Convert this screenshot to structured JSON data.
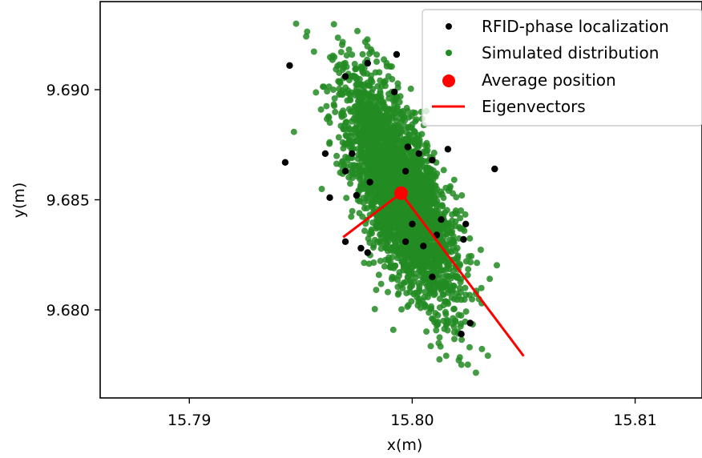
{
  "chart_data": {
    "type": "scatter",
    "title": "",
    "xlabel": "x(m)",
    "ylabel": "y(m)",
    "xlim": [
      15.786,
      15.813
    ],
    "ylim": [
      9.676,
      9.694
    ],
    "xticks": [
      "15.79",
      "15.80",
      "15.81"
    ],
    "yticks": [
      "9.680",
      "9.685",
      "9.690"
    ],
    "xtick_values": [
      15.79,
      15.8,
      15.81
    ],
    "ytick_values": [
      9.68,
      9.685,
      9.69
    ],
    "grid": false,
    "legend_position": "top-right",
    "legend": [
      {
        "label": "RFID-phase localization",
        "marker": "dot",
        "color": "#000000"
      },
      {
        "label": "Simulated distribution",
        "marker": "dot",
        "color": "#228b22"
      },
      {
        "label": "Average position",
        "marker": "large-dot",
        "color": "#ff0000"
      },
      {
        "label": "Eigenvectors",
        "marker": "line",
        "color": "#ff0000"
      }
    ],
    "colors": {
      "rfid": "#000000",
      "simulated": "#228b22",
      "average": "#ff0000",
      "eigen": "#ff0000"
    },
    "simulated_distribution": {
      "center": [
        15.7995,
        9.6853
      ],
      "major_axis_direction": [
        0.342,
        -0.94
      ],
      "major_std": 0.00275,
      "minor_std": 0.00085,
      "count": 3000,
      "x_range": [
        15.7915,
        15.8065
      ],
      "y_range": [
        9.677,
        9.6932
      ]
    },
    "rfid_points": [
      {
        "x": 15.7945,
        "y": 9.6911
      },
      {
        "x": 15.797,
        "y": 9.6906
      },
      {
        "x": 15.798,
        "y": 9.6912
      },
      {
        "x": 15.7993,
        "y": 9.6916
      },
      {
        "x": 15.7992,
        "y": 9.6899
      },
      {
        "x": 15.7943,
        "y": 9.6867
      },
      {
        "x": 15.7961,
        "y": 9.6871
      },
      {
        "x": 15.7973,
        "y": 9.6871
      },
      {
        "x": 15.7998,
        "y": 9.6874
      },
      {
        "x": 15.8003,
        "y": 9.6871
      },
      {
        "x": 15.8009,
        "y": 9.6868
      },
      {
        "x": 15.8016,
        "y": 9.6873
      },
      {
        "x": 15.8037,
        "y": 9.6864
      },
      {
        "x": 15.797,
        "y": 9.6863
      },
      {
        "x": 15.7981,
        "y": 9.6858
      },
      {
        "x": 15.7997,
        "y": 9.6863
      },
      {
        "x": 15.7963,
        "y": 9.6851
      },
      {
        "x": 15.7975,
        "y": 9.6852
      },
      {
        "x": 15.8,
        "y": 9.6839
      },
      {
        "x": 15.8013,
        "y": 9.6841
      },
      {
        "x": 15.8024,
        "y": 9.6839
      },
      {
        "x": 15.8011,
        "y": 9.6834
      },
      {
        "x": 15.8023,
        "y": 9.6832
      },
      {
        "x": 15.797,
        "y": 9.6831
      },
      {
        "x": 15.7977,
        "y": 9.6828
      },
      {
        "x": 15.798,
        "y": 9.6826
      },
      {
        "x": 15.7997,
        "y": 9.6831
      },
      {
        "x": 15.8005,
        "y": 9.6829
      },
      {
        "x": 15.8009,
        "y": 9.6815
      },
      {
        "x": 15.8026,
        "y": 9.6794
      },
      {
        "x": 15.8022,
        "y": 9.6789
      }
    ],
    "average_position": {
      "x": 15.7995,
      "y": 9.6853
    },
    "eigenvectors": [
      {
        "from": [
          15.7995,
          9.6853
        ],
        "to": [
          15.7969,
          9.6833
        ]
      },
      {
        "from": [
          15.7995,
          9.6853
        ],
        "to": [
          15.805,
          9.6779
        ]
      }
    ]
  }
}
